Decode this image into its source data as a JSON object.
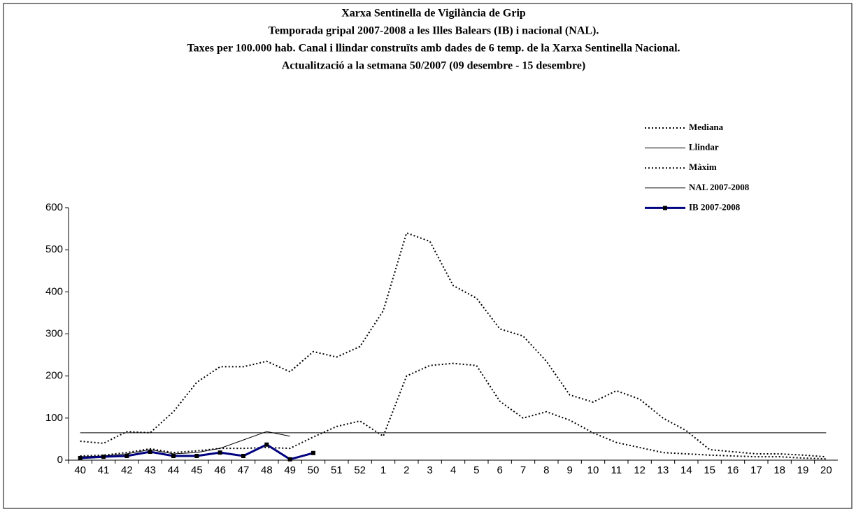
{
  "chart_data": {
    "type": "line",
    "title": [
      "Xarxa Sentinella de Vigilància de Grip",
      "Temporada gripal 2007-2008 a les Illes Balears (IB) i nacional (NAL).",
      "Taxes per 100.000 hab.  Canal i llindar construïts amb dades de 6 temp. de la Xarxa Sentinella Nacional.",
      "Actualització a la setmana 50/2007 (09 desembre - 15 desembre)"
    ],
    "categories": [
      "40",
      "41",
      "42",
      "43",
      "44",
      "45",
      "46",
      "47",
      "48",
      "49",
      "50",
      "51",
      "52",
      "1",
      "2",
      "3",
      "4",
      "5",
      "6",
      "7",
      "8",
      "9",
      "10",
      "11",
      "12",
      "13",
      "14",
      "15",
      "16",
      "17",
      "18",
      "19",
      "20"
    ],
    "series": [
      {
        "name": "Mediana",
        "color": "#000000",
        "style": "dotted",
        "values": [
          10,
          12,
          18,
          27,
          18,
          22,
          28,
          28,
          30,
          28,
          55,
          80,
          93,
          57,
          200,
          225,
          230,
          225,
          140,
          100,
          115,
          95,
          65,
          42,
          30,
          18,
          15,
          12,
          10,
          8,
          8,
          5,
          3
        ]
      },
      {
        "name": "Llindar",
        "color": "#000000",
        "style": "solid",
        "values": [
          65,
          65,
          65,
          65,
          65,
          65,
          65,
          65,
          65,
          65,
          65,
          65,
          65,
          65,
          65,
          65,
          65,
          65,
          65,
          65,
          65,
          65,
          65,
          65,
          65,
          65,
          65,
          65,
          65,
          65,
          65,
          65,
          65
        ]
      },
      {
        "name": "Màxim",
        "color": "#000000",
        "style": "dotted",
        "values": [
          45,
          40,
          68,
          65,
          115,
          185,
          222,
          222,
          235,
          210,
          258,
          245,
          270,
          355,
          540,
          520,
          415,
          385,
          312,
          295,
          235,
          155,
          138,
          165,
          145,
          100,
          70,
          25,
          20,
          15,
          15,
          12,
          8
        ]
      },
      {
        "name": "NAL 2007-2008",
        "color": "#000000",
        "style": "solid",
        "values": [
          8,
          10,
          15,
          25,
          15,
          18,
          28,
          48,
          68,
          57,
          null,
          null,
          null,
          null,
          null,
          null,
          null,
          null,
          null,
          null,
          null,
          null,
          null,
          null,
          null,
          null,
          null,
          null,
          null,
          null,
          null,
          null,
          null
        ]
      },
      {
        "name": "IB 2007-2008",
        "color": "#000080",
        "style": "bold",
        "marker": "square",
        "values": [
          5,
          8,
          10,
          20,
          10,
          10,
          18,
          10,
          37,
          2,
          17,
          null,
          null,
          null,
          null,
          null,
          null,
          null,
          null,
          null,
          null,
          null,
          null,
          null,
          null,
          null,
          null,
          null,
          null,
          null,
          null,
          null,
          null
        ]
      }
    ],
    "ylim": [
      0,
      600
    ],
    "yticks": [
      0,
      100,
      200,
      300,
      400,
      500,
      600
    ],
    "legend": "upper right"
  }
}
